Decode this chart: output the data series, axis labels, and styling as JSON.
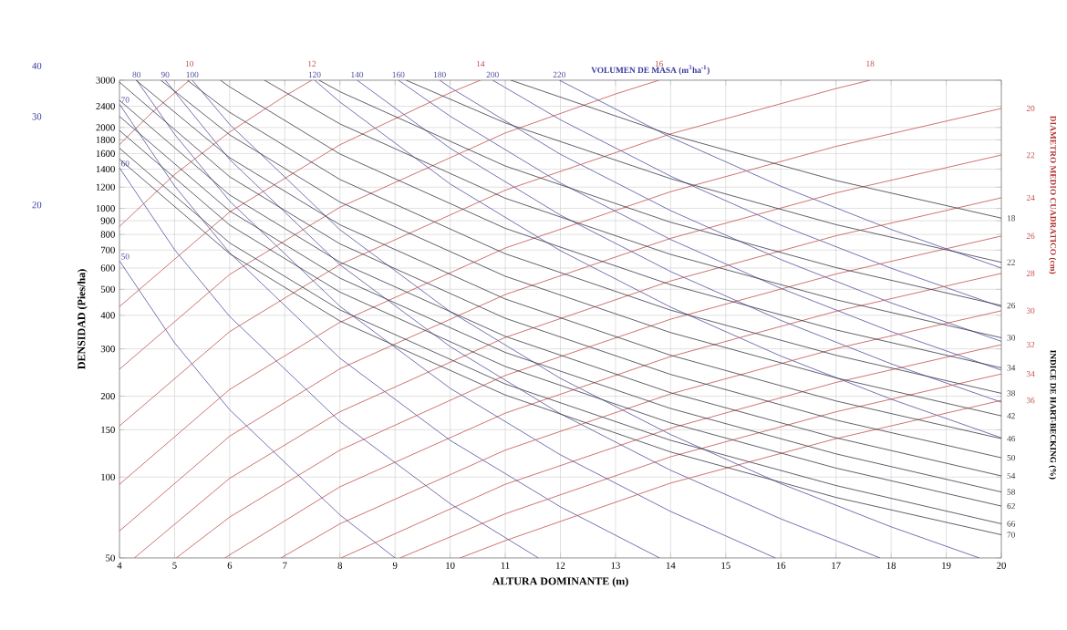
{
  "chart_data": {
    "type": "line",
    "xlabel": "ALTURA DOMINANTE (m)",
    "ylabel": "DENSIDAD (Pies/ha)",
    "annotations": [
      "40",
      "30",
      "20",
      "VOLUMEN DE MASA (m$^{3}$ha$^{-1}$)",
      "DIAMETRO MEDIO CUADRATICO (cm)",
      "INDICE DE HART-BECKING (%)"
    ],
    "xlim": [
      4,
      20
    ],
    "ylim": [
      50,
      3000
    ],
    "log": "y",
    "grid": true,
    "xticks": [
      4,
      5,
      6,
      7,
      8,
      9,
      10,
      11,
      12,
      13,
      14,
      15,
      16,
      17,
      18,
      19,
      20
    ],
    "yticks": [
      50,
      100,
      150,
      200,
      300,
      400,
      500,
      600,
      700,
      800,
      900,
      1000,
      1200,
      1400,
      1600,
      1800,
      2000,
      2400,
      3000
    ],
    "series": [
      {
        "name": "50",
        "color": "#5050a0",
        "x": [
          4,
          5,
          6,
          8,
          9
        ],
        "values": [
          638,
          316,
          178,
          72.3,
          50
        ]
      },
      {
        "name": "60",
        "color": "#5050a0",
        "x": [
          4,
          5,
          6,
          8,
          10,
          11.6
        ],
        "values": [
          1416,
          702,
          396,
          161,
          79.6,
          50
        ]
      },
      {
        "name": "70",
        "color": "#5050a0",
        "x": [
          4,
          5,
          6,
          8,
          10,
          12,
          13.8
        ],
        "values": [
          2443,
          1212,
          683,
          277,
          137,
          77.5,
          50
        ]
      },
      {
        "name": "80",
        "color": "#5050a0",
        "x": [
          4.31,
          5,
          6,
          8,
          10,
          12,
          14,
          15.9
        ],
        "values": [
          3000,
          1888,
          1064,
          432,
          214,
          121,
          74.5,
          50
        ]
      },
      {
        "name": "90",
        "color": "#5050a0",
        "x": [
          4.83,
          6,
          8,
          10,
          12,
          14,
          16,
          17.8
        ],
        "values": [
          3000,
          1520,
          617,
          306,
          172,
          106,
          69.9,
          50
        ]
      },
      {
        "name": "100",
        "color": "#5050a0",
        "x": [
          5.32,
          6,
          8,
          10,
          12,
          14,
          16,
          18,
          19.6
        ],
        "values": [
          3000,
          2054,
          833,
          413,
          233,
          144,
          94.5,
          65.3,
          50
        ]
      },
      {
        "name": "120",
        "color": "#5050a0",
        "x": [
          7.54,
          8,
          10,
          12,
          14,
          16,
          18,
          20
        ],
        "values": [
          3000,
          2488,
          1233,
          696,
          429,
          282,
          195,
          140
        ]
      },
      {
        "name": "140",
        "color": "#5050a0",
        "x": [
          8.31,
          10,
          12,
          14,
          16,
          18,
          20
        ],
        "values": [
          3000,
          1674,
          944,
          582,
          383,
          264,
          190
        ]
      },
      {
        "name": "160",
        "color": "#5050a0",
        "x": [
          9.06,
          10,
          12,
          14,
          16,
          18,
          20
        ],
        "values": [
          3000,
          2203,
          1243,
          766,
          504,
          348,
          250
        ]
      },
      {
        "name": "180",
        "color": "#5050a0",
        "x": [
          9.81,
          10,
          12,
          14,
          16,
          18,
          20
        ],
        "values": [
          3000,
          2819,
          1590,
          981,
          645,
          445,
          320
        ]
      },
      {
        "name": "200",
        "color": "#5050a0",
        "x": [
          10.77,
          12,
          14,
          16,
          18,
          20
        ],
        "values": [
          3000,
          2137,
          1318,
          866,
          599,
          430
        ]
      },
      {
        "name": "220",
        "color": "#5050a0",
        "x": [
          11.98,
          14,
          16,
          18,
          20
        ],
        "values": [
          3000,
          1839,
          1209,
          835,
          600
        ]
      },
      {
        "name": "10",
        "color": "#c0504d",
        "x": [
          4,
          4.6,
          5.27
        ],
        "values": [
          1728,
          2286,
          3000
        ]
      },
      {
        "name": "12",
        "color": "#c0504d",
        "x": [
          4,
          5,
          6,
          7,
          7.49
        ],
        "values": [
          856,
          1337,
          1925,
          2620,
          3000
        ]
      },
      {
        "name": "14",
        "color": "#c0504d",
        "x": [
          4,
          6,
          8,
          10,
          10.55
        ],
        "values": [
          431,
          970,
          1725,
          2695,
          3000
        ]
      },
      {
        "name": "16",
        "color": "#c0504d",
        "x": [
          4,
          6,
          8,
          11,
          13,
          13.79
        ],
        "values": [
          252,
          568,
          1010,
          1909,
          2666,
          3000
        ]
      },
      {
        "name": "18",
        "color": "#c0504d",
        "x": [
          4,
          6,
          8,
          11,
          14,
          17,
          17.62
        ],
        "values": [
          155,
          348,
          618,
          1169,
          1894,
          2793,
          3000
        ]
      },
      {
        "name": "20",
        "color": "#c0504d",
        "x": [
          4,
          6,
          8,
          11,
          14,
          17,
          20
        ],
        "values": [
          94,
          212,
          377,
          712,
          1154,
          1701,
          2355
        ]
      },
      {
        "name": "22",
        "color": "#c0504d",
        "x": [
          4,
          6,
          8,
          11,
          14,
          17,
          20
        ],
        "values": [
          63,
          142,
          253,
          478,
          774,
          1142,
          1580
        ]
      },
      {
        "name": "24",
        "color": "#c0504d",
        "x": [
          4.27,
          6,
          8,
          11,
          14,
          17,
          20
        ],
        "values": [
          50,
          99,
          175,
          331,
          537,
          791,
          1095
        ]
      },
      {
        "name": "26",
        "color": "#c0504d",
        "x": [
          5.03,
          6,
          8,
          11,
          14,
          17,
          20
        ],
        "values": [
          50,
          71,
          126,
          239,
          387,
          570,
          789
        ]
      },
      {
        "name": "28",
        "color": "#c0504d",
        "x": [
          5.91,
          8,
          11,
          14,
          17,
          20
        ],
        "values": [
          50,
          92,
          173,
          281,
          414,
          573
        ]
      },
      {
        "name": "30",
        "color": "#c0504d",
        "x": [
          6.93,
          8,
          11,
          14,
          17,
          20
        ],
        "values": [
          50,
          67,
          126,
          204,
          301,
          416
        ]
      },
      {
        "name": "32",
        "color": "#c0504d",
        "x": [
          8.02,
          11,
          14,
          17,
          20
        ],
        "values": [
          50,
          94,
          152,
          225,
          311
        ]
      },
      {
        "name": "34",
        "color": "#c0504d",
        "x": [
          9.09,
          11,
          14,
          17,
          20
        ],
        "values": [
          50,
          73,
          119,
          175,
          242
        ]
      },
      {
        "name": "36",
        "color": "#c0504d",
        "x": [
          10.18,
          11,
          14,
          17,
          20
        ],
        "values": [
          50,
          58,
          95,
          139,
          193
        ]
      },
      {
        "name": "18",
        "color": "#383848",
        "x": [
          11.1,
          14,
          17,
          20
        ],
        "values": [
          3000,
          1880,
          1270,
          920
        ]
      },
      {
        "name": "22",
        "color": "#383848",
        "x": [
          9.2,
          11,
          14,
          17,
          20
        ],
        "values": [
          3000,
          2080,
          1290,
          870,
          630
        ]
      },
      {
        "name": "26",
        "color": "#383848",
        "x": [
          7.62,
          8,
          11,
          14,
          17,
          20
        ],
        "values": [
          3000,
          2719,
          1438,
          888,
          602,
          435
        ]
      },
      {
        "name": "30",
        "color": "#383848",
        "x": [
          6.63,
          8,
          11,
          14,
          17,
          20
        ],
        "values": [
          3000,
          2063,
          1091,
          674,
          457,
          330
        ]
      },
      {
        "name": "34",
        "color": "#383848",
        "x": [
          5.83,
          6,
          8,
          11,
          14,
          17,
          20
        ],
        "values": [
          3000,
          2833,
          1594,
          843,
          520,
          353,
          255
        ]
      },
      {
        "name": "38",
        "color": "#383848",
        "x": [
          5.23,
          6,
          8,
          11,
          14,
          17,
          20
        ],
        "values": [
          3000,
          2278,
          1281,
          678,
          418,
          284,
          205
        ]
      },
      {
        "name": "42",
        "color": "#383848",
        "x": [
          4.75,
          6,
          8,
          11,
          14,
          17,
          20
        ],
        "values": [
          3000,
          1878,
          1056,
          559,
          345,
          234,
          169
        ]
      },
      {
        "name": "46",
        "color": "#383848",
        "x": [
          4.3,
          6,
          8,
          11,
          14,
          17,
          20
        ],
        "values": [
          3000,
          1544,
          869,
          460,
          284,
          192,
          139
        ]
      },
      {
        "name": "50",
        "color": "#383848",
        "x": [
          4,
          6,
          8,
          11,
          14,
          17,
          20
        ],
        "values": [
          2950,
          1311,
          738,
          390,
          241,
          163,
          118
        ]
      },
      {
        "name": "54",
        "color": "#383848",
        "x": [
          4,
          6,
          8,
          11,
          14,
          17,
          20
        ],
        "values": [
          2525,
          1122,
          631,
          334,
          206,
          140,
          101
        ]
      },
      {
        "name": "58",
        "color": "#383848",
        "x": [
          4,
          6,
          8,
          11,
          14,
          17,
          20
        ],
        "values": [
          2200,
          978,
          550,
          291,
          180,
          122,
          88
        ]
      },
      {
        "name": "62",
        "color": "#383848",
        "x": [
          4,
          6,
          8,
          11,
          14,
          17,
          20
        ],
        "values": [
          1950,
          867,
          488,
          258,
          159,
          108,
          78
        ]
      },
      {
        "name": "66",
        "color": "#383848",
        "x": [
          4,
          6,
          8,
          11,
          14,
          17,
          20
        ],
        "values": [
          1675,
          744,
          419,
          222,
          137,
          93,
          67
        ]
      },
      {
        "name": "70",
        "color": "#383848",
        "x": [
          4,
          6,
          8,
          11,
          14,
          17,
          20
        ],
        "values": [
          1525,
          678,
          381,
          202,
          124,
          84,
          61
        ]
      }
    ]
  }
}
